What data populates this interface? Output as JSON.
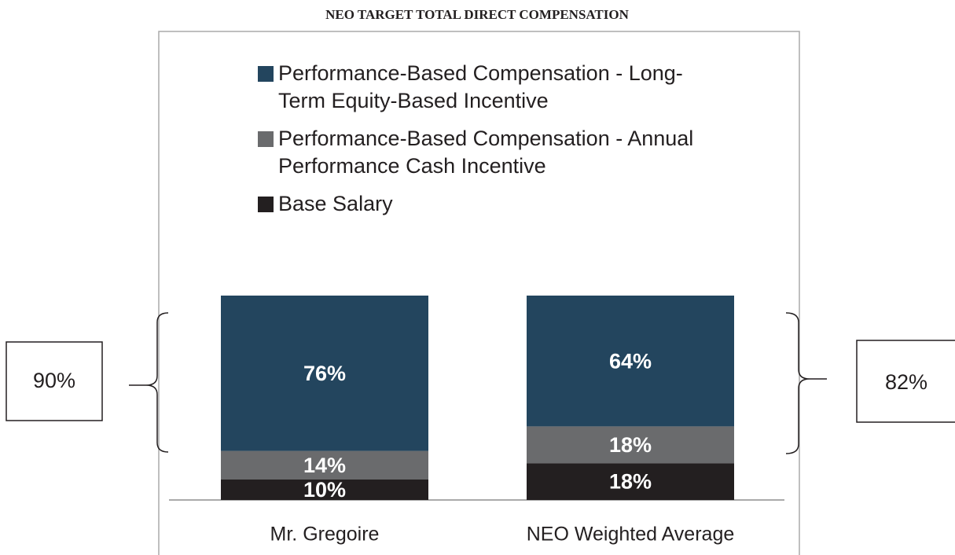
{
  "chart_data": {
    "type": "stacked_bar",
    "title": "NEO TARGET TOTAL DIRECT COMPENSATION",
    "categories": [
      "Mr. Gregoire",
      "NEO Weighted Average"
    ],
    "series": [
      {
        "name": "Base Salary",
        "color": "#231f20",
        "values": [
          10,
          18
        ],
        "value_labels": [
          "10%",
          "18%"
        ]
      },
      {
        "name": "Performance-Based Compensation - Annual Performance Cash Incentive",
        "color": "#6a6b6d",
        "values": [
          14,
          18
        ],
        "value_labels": [
          "14%",
          "18%"
        ]
      },
      {
        "name": "Performance-Based Compensation - Long-Term Equity-Based Incentive",
        "color": "#23455e",
        "values": [
          76,
          64
        ],
        "value_labels": [
          "76%",
          "64%"
        ]
      }
    ],
    "ylim": [
      0,
      100
    ],
    "annotations": [
      "90%",
      "82%"
    ]
  }
}
